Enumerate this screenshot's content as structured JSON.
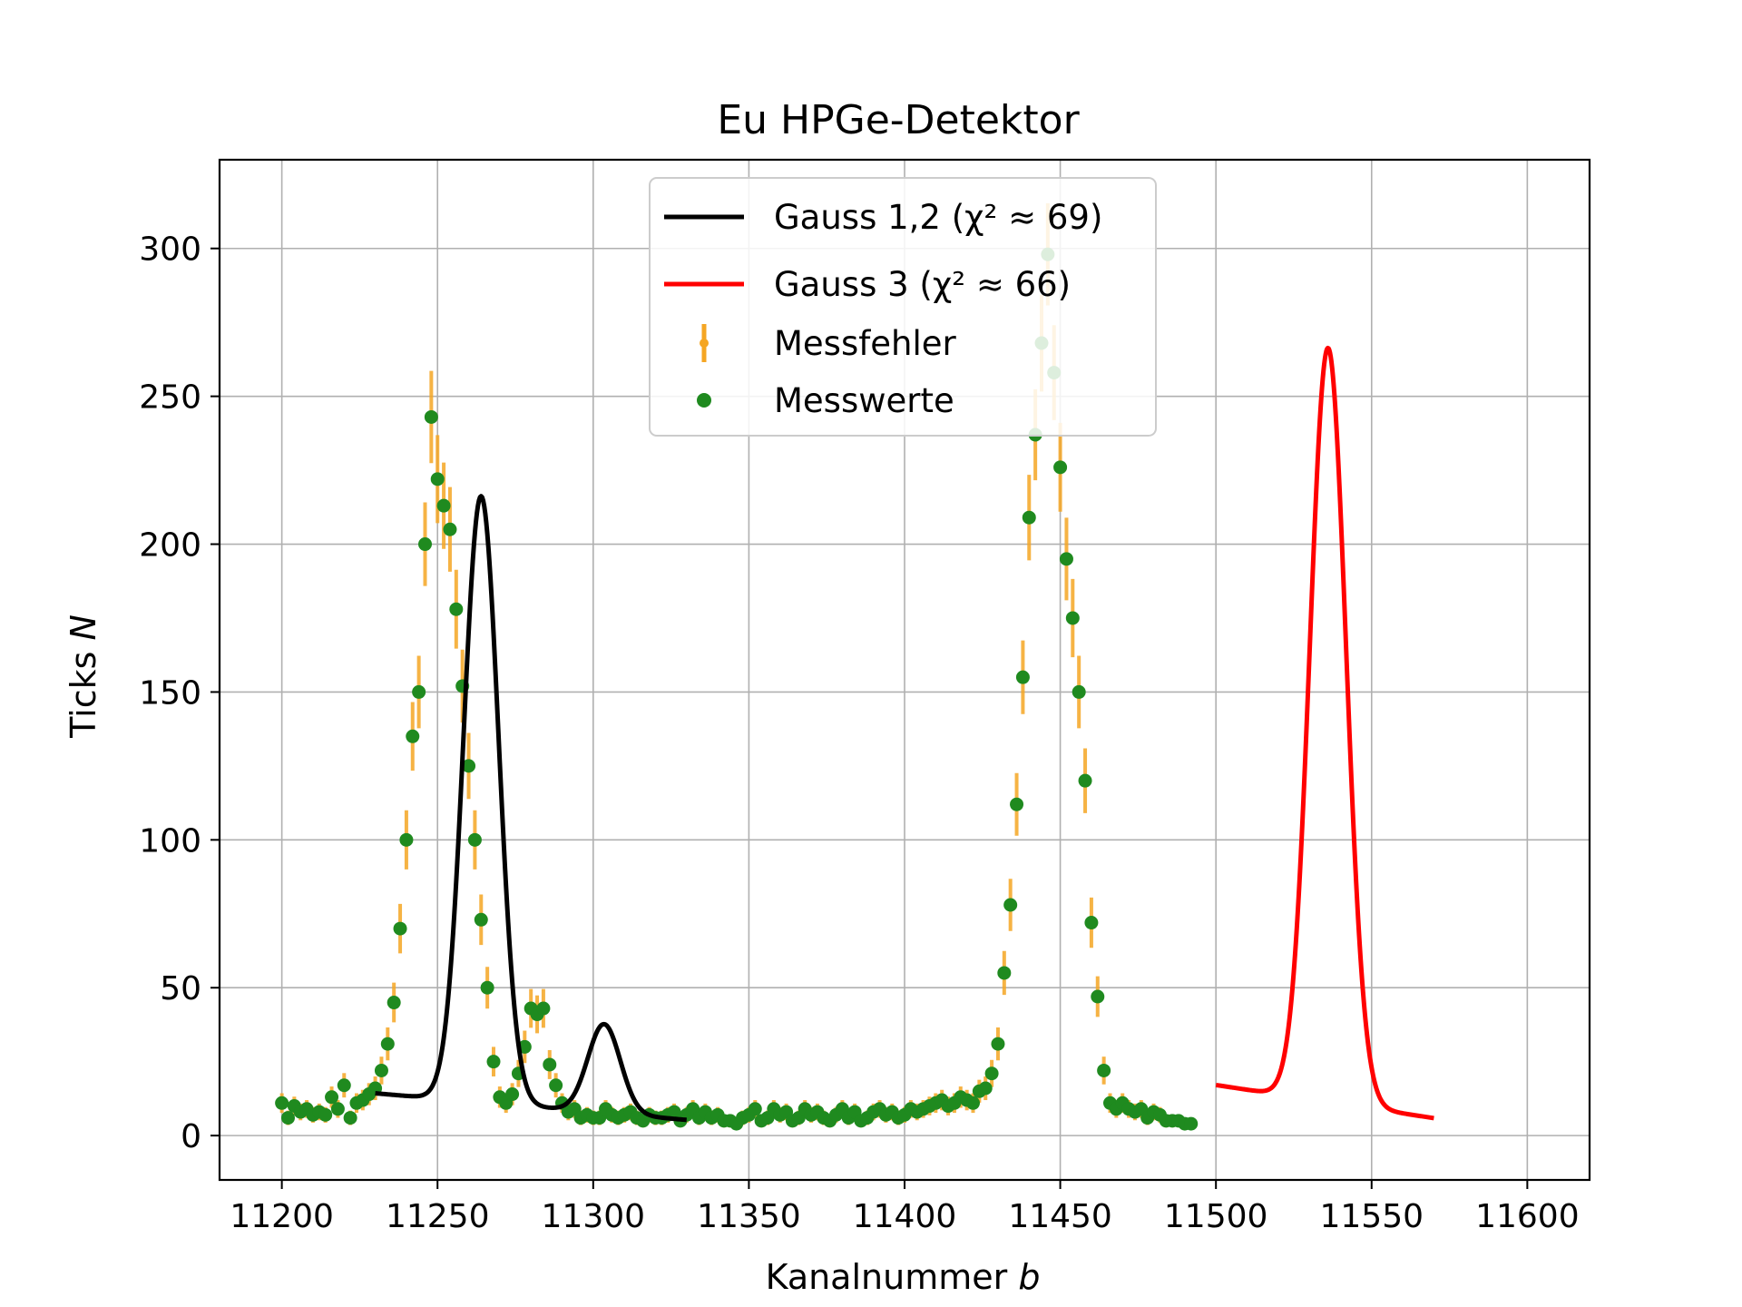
{
  "chart_data": {
    "type": "scatter",
    "title": "Eu HPGe-Detektor",
    "xlabel_text": "Kanalnummer ",
    "xlabel_var": "b",
    "ylabel_text": "Ticks ",
    "ylabel_var": "N",
    "xlim": [
      11180,
      11620
    ],
    "ylim": [
      -15,
      330
    ],
    "xticks": [
      11200,
      11250,
      11300,
      11350,
      11400,
      11450,
      11500,
      11550,
      11600
    ],
    "yticks": [
      0,
      50,
      100,
      150,
      200,
      250,
      300
    ],
    "grid": true,
    "legend_position": "upper center",
    "legend": [
      {
        "label": "Gauss 1,2 (χ² ≈ 69)",
        "kind": "line",
        "color": "#000000"
      },
      {
        "label": "Gauss 3 (χ² ≈ 66)",
        "kind": "line",
        "color": "#ff0000"
      },
      {
        "label": "Messfehler",
        "kind": "errorbar",
        "color": "#f5a623"
      },
      {
        "label": "Messwerte",
        "kind": "marker",
        "color": "#1a7f1a"
      }
    ],
    "colors": {
      "points": "#1f8a1f",
      "errorbars": "#f5a623",
      "fit12": "#000000",
      "fit3": "#ff0000",
      "grid": "#b0b0b0"
    },
    "series": [
      {
        "name": "Messwerte",
        "x_start": 11200,
        "x_step": 2,
        "values": [
          11,
          6,
          10,
          8,
          9,
          7,
          8,
          7,
          13,
          9,
          17,
          6,
          11,
          12,
          14,
          16,
          22,
          31,
          45,
          70,
          100,
          135,
          150,
          200,
          243,
          222,
          213,
          205,
          178,
          152,
          125,
          100,
          73,
          50,
          25,
          13,
          11,
          14,
          21,
          30,
          43,
          41,
          43,
          24,
          17,
          11,
          8,
          9,
          6,
          7,
          6,
          6,
          9,
          7,
          6,
          7,
          8,
          6,
          5,
          7,
          6,
          6,
          7,
          8,
          5,
          7,
          9,
          6,
          8,
          6,
          7,
          5,
          5,
          4,
          6,
          7,
          9,
          5,
          6,
          9,
          7,
          8,
          5,
          6,
          9,
          7,
          8,
          6,
          5,
          7,
          9,
          6,
          8,
          5,
          6,
          8,
          9,
          7,
          8,
          6,
          7,
          9,
          8,
          9,
          10,
          11,
          12,
          10,
          11,
          13,
          12,
          11,
          15,
          16,
          21,
          31,
          55,
          78,
          112,
          155,
          209,
          237,
          268,
          298,
          258,
          226,
          195,
          175,
          150,
          120,
          72,
          47,
          22,
          11,
          9,
          11,
          9,
          8,
          9,
          6,
          8,
          7,
          5,
          5,
          5,
          4,
          4
        ]
      }
    ],
    "error_scale": "sqrt",
    "fits": [
      {
        "name": "Gauss 1,2 (χ² ≈ 69)",
        "x_range": [
          11230,
          11330
        ],
        "background_linear": [
          14.3,
          -0.09
        ],
        "peaks": [
          {
            "amplitude": 205,
            "center": 11264,
            "sigma": 5.6
          },
          {
            "amplitude": 30,
            "center": 11303.5,
            "sigma": 5.2
          }
        ]
      },
      {
        "name": "Gauss 3 (χ² ≈ 66)",
        "x_range": [
          11500,
          11570
        ],
        "background_linear": [
          17.1,
          -0.16
        ],
        "peaks": [
          {
            "amplitude": 255,
            "center": 11536,
            "sigma": 5.8
          }
        ]
      }
    ]
  }
}
